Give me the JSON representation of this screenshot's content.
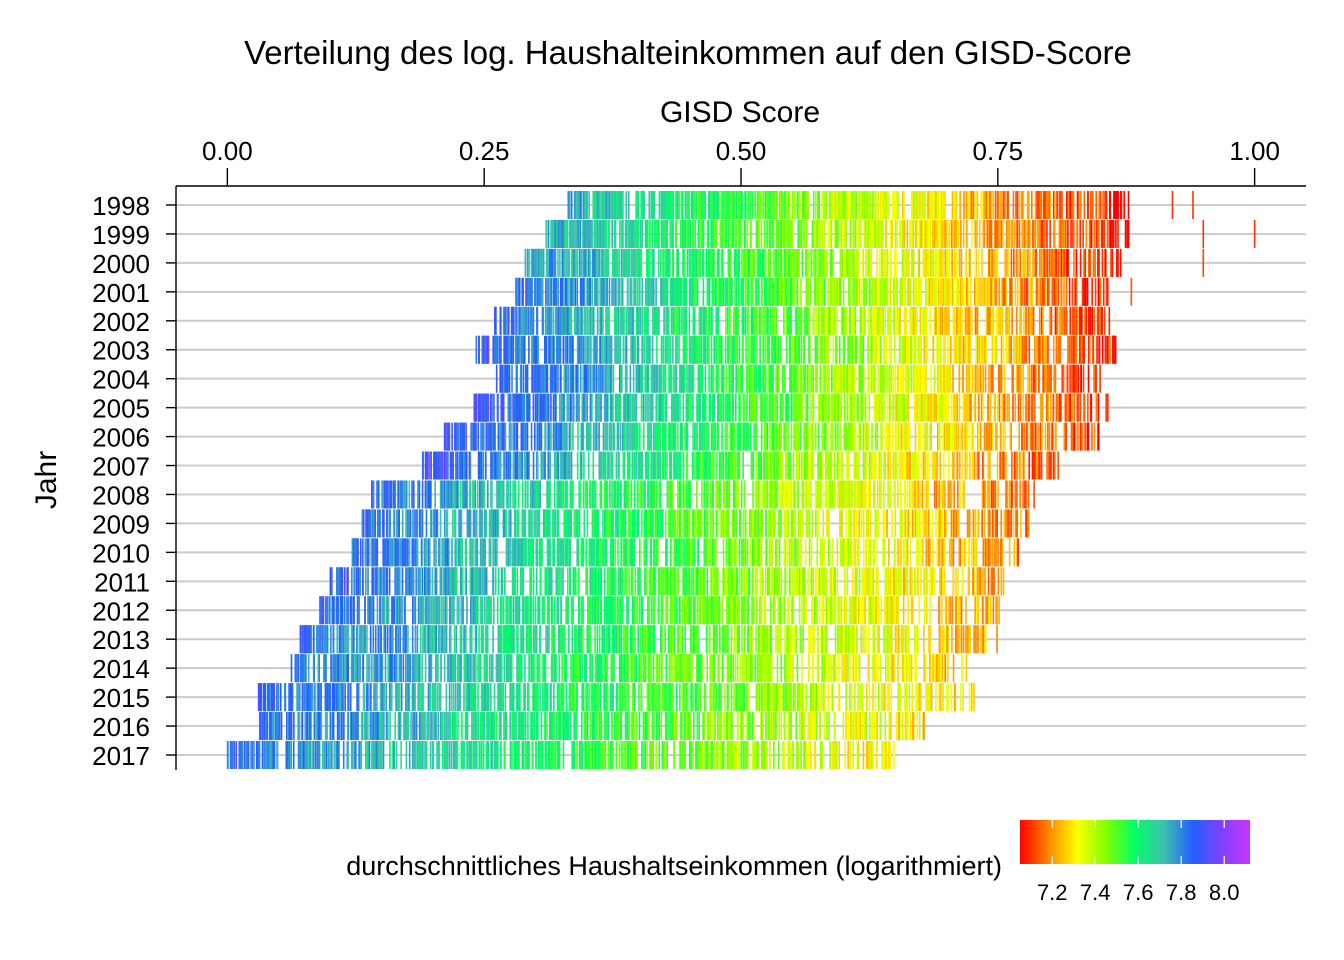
{
  "chart_data": {
    "type": "strip",
    "title": "Verteilung des log. Haushalteinkommen auf den GISD-Score",
    "xlabel": "GISD Score",
    "ylabel": "Jahr",
    "x_axis_position": "top",
    "xlim": [
      -0.05,
      1.05
    ],
    "x_ticks": [
      0.0,
      0.25,
      0.5,
      0.75,
      1.0
    ],
    "x_tick_labels": [
      "0.00",
      "0.25",
      "0.50",
      "0.75",
      "1.00"
    ],
    "y_categories": [
      "1998",
      "1999",
      "2000",
      "2001",
      "2002",
      "2003",
      "2004",
      "2005",
      "2006",
      "2007",
      "2008",
      "2009",
      "2010",
      "2011",
      "2012",
      "2013",
      "2014",
      "2015",
      "2016",
      "2017"
    ],
    "grid": "horizontal",
    "legend": {
      "title": "durchschnittliches Haushaltseinkommen (logarithmiert)",
      "position": "bottom-right",
      "range": [
        7.05,
        8.12
      ],
      "ticks": [
        7.2,
        7.4,
        7.6,
        7.8,
        8.0
      ],
      "tick_labels": [
        "7.2",
        "7.4",
        "7.6",
        "7.8",
        "8.0"
      ],
      "palette": [
        "#ff0000",
        "#ff8800",
        "#ffff00",
        "#80ff00",
        "#00ff66",
        "#40c0b0",
        "#2060ff",
        "#8040ff",
        "#cc33ff"
      ]
    },
    "series": [
      {
        "year": "1998",
        "gisd_min": 0.33,
        "gisd_max": 0.88,
        "outliers": [
          0.92,
          0.94
        ],
        "log_income_low_end": 7.75,
        "log_income_high_end": 7.05
      },
      {
        "year": "1999",
        "gisd_min": 0.31,
        "gisd_max": 0.88,
        "outliers": [
          0.95,
          1.0
        ],
        "log_income_low_end": 7.75,
        "log_income_high_end": 7.05
      },
      {
        "year": "2000",
        "gisd_min": 0.29,
        "gisd_max": 0.87,
        "outliers": [
          0.95
        ],
        "log_income_low_end": 7.8,
        "log_income_high_end": 7.07
      },
      {
        "year": "2001",
        "gisd_min": 0.28,
        "gisd_max": 0.86,
        "outliers": [
          0.88
        ],
        "log_income_low_end": 7.85,
        "log_income_high_end": 7.08
      },
      {
        "year": "2002",
        "gisd_min": 0.26,
        "gisd_max": 0.86,
        "outliers": [],
        "log_income_low_end": 7.85,
        "log_income_high_end": 7.08
      },
      {
        "year": "2003",
        "gisd_min": 0.24,
        "gisd_max": 0.87,
        "outliers": [],
        "log_income_low_end": 7.9,
        "log_income_high_end": 7.08
      },
      {
        "year": "2004",
        "gisd_min": 0.26,
        "gisd_max": 0.85,
        "outliers": [],
        "log_income_low_end": 7.9,
        "log_income_high_end": 7.08
      },
      {
        "year": "2005",
        "gisd_min": 0.24,
        "gisd_max": 0.86,
        "outliers": [],
        "log_income_low_end": 7.9,
        "log_income_high_end": 7.08
      },
      {
        "year": "2006",
        "gisd_min": 0.21,
        "gisd_max": 0.85,
        "outliers": [],
        "log_income_low_end": 7.9,
        "log_income_high_end": 7.1
      },
      {
        "year": "2007",
        "gisd_min": 0.19,
        "gisd_max": 0.81,
        "outliers": [],
        "log_income_low_end": 7.9,
        "log_income_high_end": 7.12
      },
      {
        "year": "2008",
        "gisd_min": 0.14,
        "gisd_max": 0.79,
        "outliers": [],
        "log_income_low_end": 7.85,
        "log_income_high_end": 7.14
      },
      {
        "year": "2009",
        "gisd_min": 0.13,
        "gisd_max": 0.78,
        "outliers": [],
        "log_income_low_end": 7.85,
        "log_income_high_end": 7.16
      },
      {
        "year": "2010",
        "gisd_min": 0.12,
        "gisd_max": 0.77,
        "outliers": [],
        "log_income_low_end": 7.85,
        "log_income_high_end": 7.18
      },
      {
        "year": "2011",
        "gisd_min": 0.1,
        "gisd_max": 0.76,
        "outliers": [],
        "log_income_low_end": 7.85,
        "log_income_high_end": 7.2
      },
      {
        "year": "2012",
        "gisd_min": 0.09,
        "gisd_max": 0.76,
        "outliers": [],
        "log_income_low_end": 7.85,
        "log_income_high_end": 7.2
      },
      {
        "year": "2013",
        "gisd_min": 0.07,
        "gisd_max": 0.75,
        "outliers": [],
        "log_income_low_end": 7.85,
        "log_income_high_end": 7.22
      },
      {
        "year": "2014",
        "gisd_min": 0.06,
        "gisd_max": 0.72,
        "outliers": [],
        "log_income_low_end": 7.85,
        "log_income_high_end": 7.24
      },
      {
        "year": "2015",
        "gisd_min": 0.03,
        "gisd_max": 0.73,
        "outliers": [],
        "log_income_low_end": 7.85,
        "log_income_high_end": 7.26
      },
      {
        "year": "2016",
        "gisd_min": 0.03,
        "gisd_max": 0.68,
        "outliers": [],
        "log_income_low_end": 7.85,
        "log_income_high_end": 7.28
      },
      {
        "year": "2017",
        "gisd_min": 0.0,
        "gisd_max": 0.65,
        "outliers": [],
        "log_income_low_end": 7.85,
        "log_income_high_end": 7.3
      }
    ]
  }
}
